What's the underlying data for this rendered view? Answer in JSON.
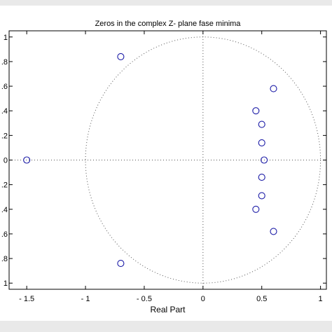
{
  "chart_data": {
    "type": "scatter",
    "title": "Zeros in the complex Z- plane fase minima",
    "xlabel": "Real Part",
    "ylabel": "",
    "xlim": [
      -1.65,
      1.05
    ],
    "ylim": [
      -1.05,
      1.05
    ],
    "xticks": [
      -1.5,
      -1,
      -0.5,
      0,
      0.5,
      1
    ],
    "xtick_labels": [
      "- 1.5",
      "- 1",
      "- 0.5",
      "0",
      "0.5",
      "1"
    ],
    "yticks": [
      1,
      0.8,
      0.6,
      0.4,
      0.2,
      0,
      -0.2,
      -0.4,
      -0.6,
      -0.8,
      -1
    ],
    "ytick_labels": [
      "1",
      ".8",
      ".6",
      ".4",
      ".2",
      "0",
      ".2",
      ".4",
      ".6",
      ".8",
      "1"
    ],
    "unit_circle": true,
    "axes_lines": true,
    "grid": false,
    "marker": "circle-open",
    "marker_color": "#1a1aa6",
    "series": [
      {
        "x": [
          -1.5,
          -0.7,
          -0.7,
          0.45,
          0.45,
          0.5,
          0.5,
          0.5,
          0.5,
          0.52,
          0.6,
          0.6
        ],
        "y": [
          0,
          0.84,
          -0.84,
          0.4,
          -0.4,
          0.29,
          -0.29,
          0.14,
          -0.14,
          0,
          0.58,
          -0.58
        ]
      }
    ]
  }
}
